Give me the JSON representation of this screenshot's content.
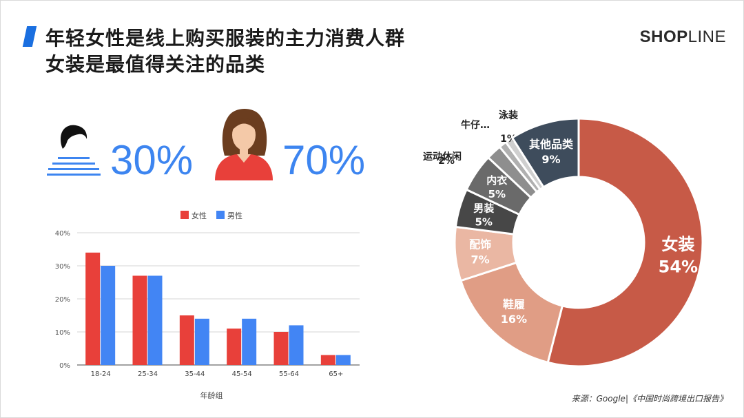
{
  "title": {
    "line1": "年轻女性是线上购买服装的主力消费人群",
    "line2": "女装是最值得关注的品类"
  },
  "logo": {
    "text_bold": "SHOP",
    "text_thin": "LINE"
  },
  "gender": {
    "male_pct": "30%",
    "female_pct": "70%"
  },
  "source": "来源：Google|《中国时尚跨境出口报告》",
  "colors": {
    "accent": "#1a6fe0",
    "female": "#e8403a",
    "male": "#4285f4",
    "pct_text": "#3d85f0"
  },
  "chart_data": [
    {
      "type": "bar",
      "xlabel": "年龄组",
      "ylabel": "",
      "ylim": [
        0,
        40
      ],
      "yticks": [
        "0%",
        "10%",
        "20%",
        "30%",
        "40%"
      ],
      "categories": [
        "18-24",
        "25-34",
        "35-44",
        "45-54",
        "55-64",
        "65+"
      ],
      "legend_position": "top",
      "grid": true,
      "series": [
        {
          "name": "女性",
          "color": "#e8403a",
          "values": [
            34,
            27,
            15,
            11,
            10,
            3
          ]
        },
        {
          "name": "男性",
          "color": "#4285f4",
          "values": [
            30,
            27,
            14,
            14,
            12,
            3
          ]
        }
      ]
    },
    {
      "type": "pie",
      "variant": "donut",
      "slices": [
        {
          "label": "女装",
          "pct_label": "54%",
          "value": 54,
          "color": "#c75a47"
        },
        {
          "label": "鞋履",
          "pct_label": "16%",
          "value": 16,
          "color": "#e09d85"
        },
        {
          "label": "配饰",
          "pct_label": "7%",
          "value": 7,
          "color": "#eab7a3"
        },
        {
          "label": "男装",
          "pct_label": "5%",
          "value": 5,
          "color": "#474747"
        },
        {
          "label": "内衣",
          "pct_label": "5%",
          "value": 5,
          "color": "#6a6a6a"
        },
        {
          "label": "运动休闲",
          "pct_label": "2%",
          "value": 2,
          "color": "#8e8e8e"
        },
        {
          "label": "牛仔…",
          "pct_label": "",
          "value": 1,
          "color": "#b0b0b0"
        },
        {
          "label": "泳装",
          "pct_label": "1%",
          "value": 1,
          "color": "#cfcfcf"
        },
        {
          "label": "其他品类",
          "pct_label": "9%",
          "value": 9,
          "color": "#3e4c5c"
        }
      ]
    }
  ]
}
